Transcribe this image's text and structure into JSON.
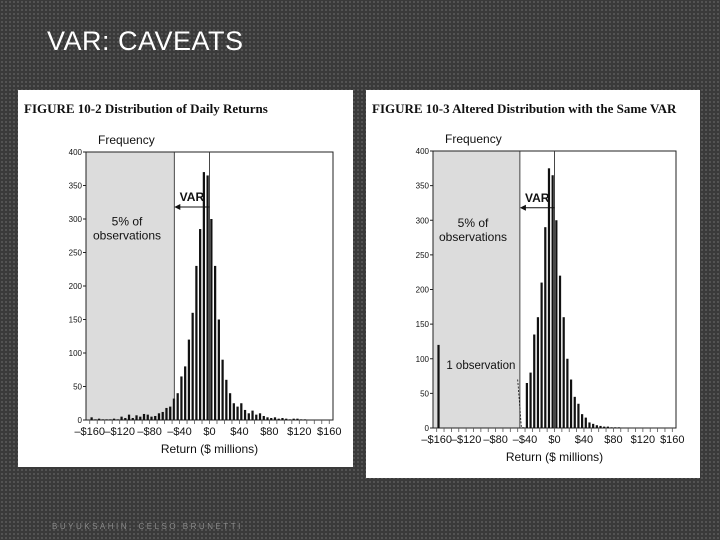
{
  "slide": {
    "title": "VAR: CAVEATS",
    "footer": "BUYUKSAHIN, CELSO BRUNETTI"
  },
  "chart_data": [
    {
      "type": "bar",
      "title": "FIGURE 10-2 Distribution of Daily Returns",
      "ylabel": "Frequency",
      "xlabel": "Return ($ millions)",
      "ylim": [
        0,
        400
      ],
      "xlim": [
        -165,
        165
      ],
      "yticks": [
        "0",
        "50",
        "100",
        "150",
        "200",
        "250",
        "300",
        "350",
        "400"
      ],
      "xticks": [
        "–$160",
        "–$120",
        "–$80",
        "–$40",
        "$0",
        "$40",
        "$80",
        "$120",
        "$160"
      ],
      "xtick_values": [
        -160,
        -120,
        -80,
        -40,
        0,
        40,
        80,
        120,
        160
      ],
      "bin_width": 5,
      "x": [
        -160,
        -155,
        -150,
        -145,
        -140,
        -135,
        -130,
        -125,
        -120,
        -115,
        -110,
        -105,
        -100,
        -95,
        -90,
        -85,
        -80,
        -75,
        -70,
        -65,
        -60,
        -55,
        -50,
        -45,
        -40,
        -35,
        -30,
        -25,
        -20,
        -15,
        -10,
        -5,
        0,
        5,
        10,
        15,
        20,
        25,
        30,
        35,
        40,
        45,
        50,
        55,
        60,
        65,
        70,
        75,
        80,
        85,
        90,
        95,
        100,
        105,
        110,
        115,
        120,
        125,
        130,
        135,
        140,
        145,
        150,
        155
      ],
      "values": [
        4,
        1,
        2,
        1,
        1,
        1,
        2,
        1,
        5,
        3,
        8,
        3,
        7,
        5,
        9,
        8,
        5,
        6,
        10,
        12,
        18,
        20,
        32,
        40,
        65,
        80,
        120,
        160,
        230,
        285,
        370,
        365,
        300,
        230,
        150,
        90,
        60,
        40,
        25,
        20,
        25,
        15,
        10,
        14,
        8,
        10,
        6,
        4,
        3,
        4,
        2,
        3,
        2,
        1,
        2,
        2,
        1,
        1,
        0,
        0,
        0,
        0,
        0,
        0
      ],
      "shaded_region": {
        "from": -160,
        "to": -47,
        "label": "5% of observations"
      },
      "var_line_x": -47,
      "mean_line_x": 0,
      "annotations": {
        "var_label": "VAR"
      }
    },
    {
      "type": "bar",
      "title": "FIGURE 10-3 Altered Distribution with the Same VAR",
      "ylabel": "Frequency",
      "xlabel": "Return ($ millions)",
      "ylim": [
        0,
        400
      ],
      "xlim": [
        -165,
        165
      ],
      "yticks": [
        "0",
        "50",
        "100",
        "150",
        "200",
        "250",
        "300",
        "350",
        "400"
      ],
      "xticks": [
        "–$160",
        "–$120",
        "–$80",
        "–$40",
        "$0",
        "$40",
        "$80",
        "$120",
        "$160"
      ],
      "xtick_values": [
        -160,
        -120,
        -80,
        -40,
        0,
        40,
        80,
        120,
        160
      ],
      "bin_width": 5,
      "x": [
        -160,
        -155,
        -150,
        -145,
        -140,
        -135,
        -130,
        -125,
        -120,
        -115,
        -110,
        -105,
        -100,
        -95,
        -90,
        -85,
        -80,
        -75,
        -70,
        -65,
        -60,
        -55,
        -50,
        -45,
        -40,
        -35,
        -30,
        -25,
        -20,
        -15,
        -10,
        -5,
        0,
        5,
        10,
        15,
        20,
        25,
        30,
        35,
        40,
        45,
        50,
        55,
        60,
        65,
        70,
        75,
        80,
        85,
        90,
        95,
        100,
        105,
        110,
        115,
        120,
        125,
        130,
        135,
        140,
        145,
        150,
        155
      ],
      "values": [
        120,
        0,
        0,
        0,
        0,
        0,
        0,
        0,
        0,
        0,
        0,
        0,
        0,
        0,
        0,
        0,
        0,
        0,
        0,
        0,
        0,
        0,
        0,
        1,
        65,
        80,
        135,
        160,
        210,
        290,
        375,
        365,
        300,
        220,
        160,
        100,
        70,
        45,
        35,
        20,
        15,
        8,
        6,
        4,
        3,
        2,
        2,
        1,
        1,
        1,
        0,
        0,
        0,
        0,
        0,
        0,
        0,
        0,
        0,
        0,
        0,
        0,
        0,
        0
      ],
      "shaded_region": {
        "from": -160,
        "to": -47,
        "label": "5% of observations"
      },
      "var_line_x": -47,
      "mean_line_x": 0,
      "annotations": {
        "var_label": "VAR",
        "observation_label": "1 observation"
      }
    }
  ]
}
